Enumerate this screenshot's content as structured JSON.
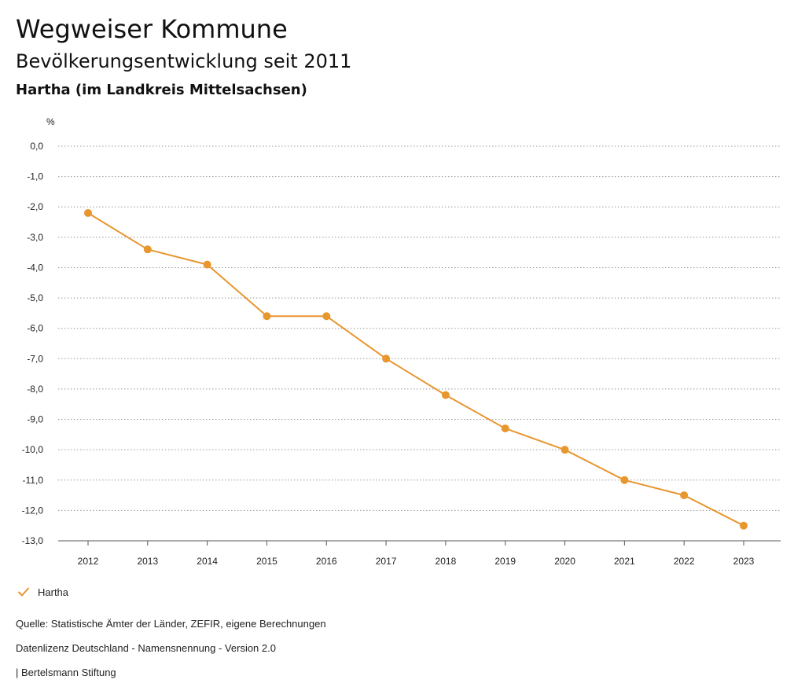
{
  "header": {
    "title": "Wegweiser Kommune",
    "subtitle": "Bevölkerungsentwicklung seit 2011",
    "region": "Hartha (im Landkreis Mittelsachsen)"
  },
  "chart_data": {
    "type": "line",
    "unit_label": "%",
    "x": [
      "2012",
      "2013",
      "2014",
      "2015",
      "2016",
      "2017",
      "2018",
      "2019",
      "2020",
      "2021",
      "2022",
      "2023"
    ],
    "series": [
      {
        "name": "Hartha",
        "color": "#e8962e",
        "values": [
          -2.2,
          -3.4,
          -3.9,
          -5.6,
          -5.6,
          -7.0,
          -8.2,
          -9.3,
          -10.0,
          -11.0,
          -11.5,
          -12.5
        ]
      }
    ],
    "ylim": [
      -13.0,
      0.0
    ],
    "yticks": [
      "0,0",
      "-1,0",
      "-2,0",
      "-3,0",
      "-4,0",
      "-5,0",
      "-6,0",
      "-7,0",
      "-8,0",
      "-9,0",
      "-10,0",
      "-11,0",
      "-12,0",
      "-13,0"
    ],
    "grid": true,
    "legend_placement": "bottom-left"
  },
  "legend": {
    "label": "Hartha",
    "icon": "check-icon",
    "color": "#e8962e"
  },
  "footer": {
    "source": "Quelle: Statistische Ämter der Länder, ZEFIR, eigene Berechnungen",
    "license": "Datenlizenz Deutschland - Namensnennung - Version 2.0",
    "publisher": "| Bertelsmann Stiftung"
  }
}
